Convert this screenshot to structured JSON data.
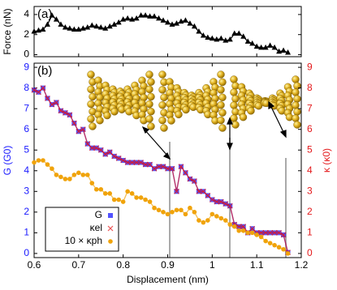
{
  "chart_data": [
    {
      "type": "line",
      "label": "(a)",
      "ylabel": "Force (nN)",
      "color": "#000000",
      "marker": "triangle",
      "x": [
        0.6,
        0.61,
        0.62,
        0.63,
        0.64,
        0.65,
        0.66,
        0.67,
        0.68,
        0.69,
        0.7,
        0.71,
        0.72,
        0.73,
        0.74,
        0.75,
        0.76,
        0.77,
        0.78,
        0.79,
        0.8,
        0.81,
        0.82,
        0.83,
        0.84,
        0.85,
        0.86,
        0.87,
        0.88,
        0.89,
        0.9,
        0.91,
        0.92,
        0.93,
        0.94,
        0.95,
        0.96,
        0.97,
        0.98,
        0.99,
        1.0,
        1.01,
        1.02,
        1.03,
        1.04,
        1.05,
        1.06,
        1.07,
        1.08,
        1.09,
        1.1,
        1.11,
        1.12,
        1.13,
        1.14,
        1.15,
        1.16,
        1.17
      ],
      "values": [
        2.3,
        2.4,
        2.5,
        3.0,
        3.9,
        3.5,
        3.0,
        2.7,
        2.6,
        2.5,
        2.5,
        2.6,
        2.7,
        2.9,
        2.8,
        2.7,
        2.6,
        2.8,
        3.0,
        3.2,
        3.5,
        3.6,
        3.5,
        3.6,
        3.9,
        3.9,
        3.8,
        3.8,
        3.6,
        3.4,
        3.2,
        3.0,
        3.1,
        3.3,
        3.4,
        3.1,
        2.8,
        2.3,
        1.9,
        1.7,
        1.6,
        1.5,
        1.6,
        1.4,
        1.5,
        2.1,
        2.1,
        1.8,
        1.3,
        1.1,
        0.8,
        0.7,
        0.7,
        0.9,
        0.7,
        0.3,
        0.4,
        0.2
      ],
      "xlim": [
        0.6,
        1.2
      ],
      "xticks": [
        0.6,
        0.7,
        0.8,
        0.9,
        1,
        1.1,
        1.2
      ],
      "ylim": [
        -0.2,
        4.8
      ],
      "yticks": [
        0,
        2,
        4
      ]
    },
    {
      "type": "line",
      "label": "(b)",
      "xlabel": "Displacement (nm)",
      "ylabel": "G (G0)",
      "y2label": "κ (κ0)",
      "ylabel_color": "#1a1aff",
      "y2label_color": "#e41a1c",
      "legend": "lower left",
      "x": [
        0.6,
        0.61,
        0.62,
        0.63,
        0.64,
        0.65,
        0.66,
        0.67,
        0.68,
        0.69,
        0.7,
        0.71,
        0.72,
        0.73,
        0.74,
        0.75,
        0.76,
        0.77,
        0.78,
        0.79,
        0.8,
        0.81,
        0.82,
        0.83,
        0.84,
        0.85,
        0.86,
        0.87,
        0.88,
        0.89,
        0.9,
        0.91,
        0.92,
        0.93,
        0.94,
        0.95,
        0.96,
        0.97,
        0.98,
        0.99,
        1.0,
        1.01,
        1.02,
        1.03,
        1.04,
        1.05,
        1.06,
        1.07,
        1.08,
        1.09,
        1.1,
        1.11,
        1.12,
        1.13,
        1.14,
        1.15,
        1.16,
        1.17
      ],
      "series": [
        {
          "name": "G",
          "color": "#1a1aff",
          "marker": "square",
          "values": [
            7.9,
            7.8,
            8.0,
            7.5,
            7.2,
            7.3,
            6.9,
            6.8,
            6.7,
            6.3,
            5.9,
            6.0,
            5.3,
            5.1,
            5.1,
            5.0,
            4.8,
            4.9,
            4.7,
            4.6,
            4.5,
            4.4,
            4.4,
            4.4,
            4.4,
            4.3,
            4.3,
            4.1,
            4.2,
            4.2,
            4.1,
            4.1,
            3.0,
            4.2,
            3.9,
            3.6,
            3.5,
            3.0,
            3.0,
            2.8,
            2.6,
            2.5,
            2.5,
            2.4,
            2.3,
            1.4,
            1.3,
            1.3,
            1.0,
            1.2,
            1.0,
            1.0,
            1.0,
            1.0,
            1.0,
            1.0,
            0.9,
            0.05
          ]
        },
        {
          "name": "κel",
          "color": "#e41a1c",
          "marker": "cross",
          "axis": "y2",
          "values": [
            7.9,
            7.8,
            8.0,
            7.5,
            7.2,
            7.3,
            6.9,
            6.8,
            6.7,
            6.3,
            5.9,
            6.0,
            5.3,
            5.1,
            5.1,
            5.0,
            4.8,
            4.9,
            4.7,
            4.6,
            4.5,
            4.4,
            4.4,
            4.4,
            4.4,
            4.3,
            4.3,
            4.1,
            4.2,
            4.2,
            4.1,
            4.1,
            3.0,
            4.2,
            3.9,
            3.6,
            3.5,
            3.0,
            3.0,
            2.8,
            2.6,
            2.5,
            2.5,
            2.4,
            2.3,
            1.4,
            1.3,
            1.3,
            1.0,
            1.2,
            1.0,
            1.0,
            1.0,
            1.0,
            1.0,
            1.0,
            0.9,
            0.05
          ]
        },
        {
          "name": "10 × κph",
          "color": "#f0a30a",
          "marker": "circle",
          "axis": "y2",
          "values": [
            4.4,
            4.5,
            4.5,
            4.3,
            4.1,
            3.8,
            3.7,
            3.6,
            3.6,
            3.8,
            3.9,
            3.8,
            3.8,
            3.4,
            3.1,
            3.1,
            2.9,
            2.9,
            2.6,
            2.6,
            2.5,
            3.0,
            2.9,
            2.7,
            2.7,
            2.6,
            2.5,
            2.2,
            2.1,
            2.0,
            1.9,
            2.0,
            2.1,
            2.1,
            1.9,
            2.2,
            2.0,
            1.6,
            1.5,
            1.6,
            1.9,
            1.8,
            1.7,
            1.6,
            1.4,
            1.3,
            1.1,
            1.1,
            1.0,
            1.0,
            0.9,
            0.8,
            0.6,
            0.5,
            0.4,
            0.3,
            0.2,
            0.0
          ]
        }
      ],
      "xlim": [
        0.6,
        1.2
      ],
      "xticks": [
        0.6,
        0.7,
        0.8,
        0.9,
        1,
        1.1,
        1.2
      ],
      "ylim": [
        -0.2,
        9.2
      ],
      "yticks": [
        0,
        1,
        2,
        3,
        4,
        5,
        6,
        7,
        8,
        9
      ],
      "y2lim": [
        -0.2,
        9.2
      ],
      "y2ticks": [
        0,
        1,
        2,
        3,
        4,
        5,
        6,
        7,
        8,
        9
      ]
    }
  ]
}
